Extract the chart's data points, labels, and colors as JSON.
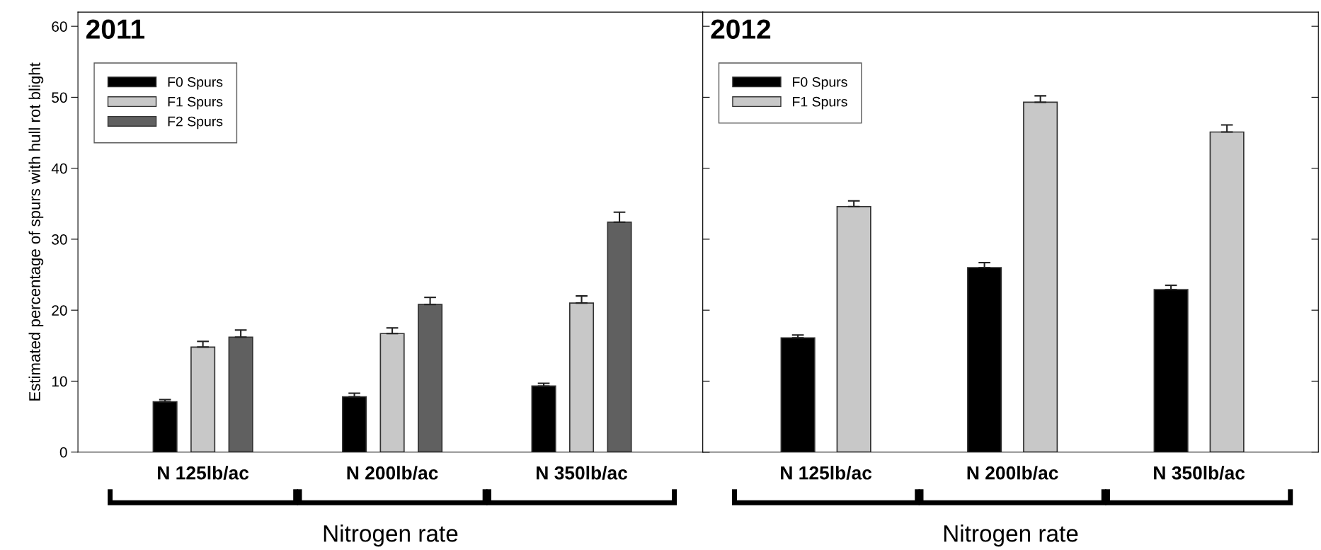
{
  "chart_data": [
    {
      "type": "bar",
      "title": "2011",
      "ylabel": "Estimated percentage of spurs with hull rot blight",
      "xlabel": "Nitrogen rate",
      "categories": [
        "N 125lb/ac",
        "N 200lb/ac",
        "N 350lb/ac"
      ],
      "series": [
        {
          "name": "F0 Spurs",
          "color": "#000000",
          "values": [
            7.1,
            7.8,
            9.3
          ],
          "errors": [
            [
              7.1,
              7.4
            ],
            [
              7.8,
              8.3
            ],
            [
              9.3,
              9.7
            ]
          ]
        },
        {
          "name": "F1 Spurs",
          "color": "#c8c8c8",
          "values": [
            14.8,
            16.7,
            21.0
          ],
          "errors": [
            [
              14.8,
              15.6
            ],
            [
              16.7,
              17.5
            ],
            [
              21.0,
              22.0
            ]
          ]
        },
        {
          "name": "F2 Spurs",
          "color": "#606060",
          "values": [
            16.2,
            20.8,
            32.4
          ],
          "errors": [
            [
              16.2,
              17.2
            ],
            [
              20.8,
              21.8
            ],
            [
              32.4,
              33.8
            ]
          ]
        }
      ],
      "ylim": [
        0,
        62
      ],
      "yticks": [
        0,
        10,
        20,
        30,
        40,
        50,
        60
      ],
      "legend": "top left",
      "grid": false
    },
    {
      "type": "bar",
      "title": "2012",
      "xlabel": "Nitrogen rate",
      "categories": [
        "N 125lb/ac",
        "N 200lb/ac",
        "N 350lb/ac"
      ],
      "series": [
        {
          "name": "F0 Spurs",
          "color": "#000000",
          "values": [
            16.1,
            26.0,
            22.9
          ],
          "errors": [
            [
              16.1,
              16.5
            ],
            [
              26.0,
              26.7
            ],
            [
              22.9,
              23.5
            ]
          ]
        },
        {
          "name": "F1 Spurs",
          "color": "#c8c8c8",
          "values": [
            34.6,
            49.3,
            45.1
          ],
          "errors": [
            [
              34.6,
              35.4
            ],
            [
              49.3,
              50.2
            ],
            [
              45.1,
              46.1
            ]
          ]
        }
      ],
      "ylim": [
        0,
        62
      ],
      "yticks": [
        0,
        10,
        20,
        30,
        40,
        50,
        60
      ],
      "tick_labels": "x",
      "legend": "top left",
      "grid": false
    }
  ]
}
